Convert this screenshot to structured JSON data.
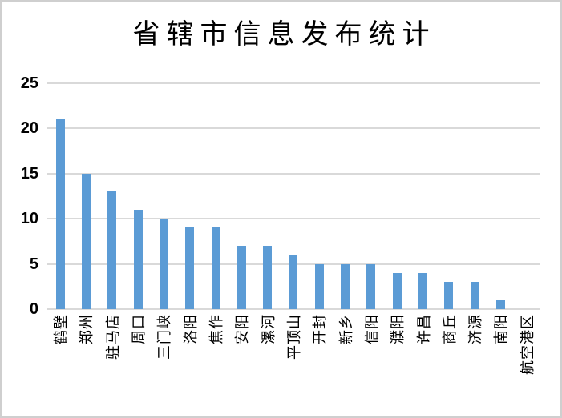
{
  "window": {
    "background_color": "#FFFFFF",
    "border_color": "#CFCFCF"
  },
  "chart_data": {
    "type": "bar",
    "title": "省辖市信息发布统计",
    "categories": [
      "鹤壁",
      "郑州",
      "驻马店",
      "周口",
      "三门峡",
      "洛阳",
      "焦作",
      "安阳",
      "漯河",
      "平顶山",
      "开封",
      "新乡",
      "信阳",
      "濮阳",
      "许昌",
      "商丘",
      "济源",
      "南阳",
      "航空港区"
    ],
    "values": [
      21,
      15,
      13,
      11,
      10,
      9,
      9,
      7,
      7,
      6,
      5,
      5,
      5,
      4,
      4,
      3,
      3,
      1,
      0
    ],
    "xlabel": "",
    "ylabel": "",
    "ylim": [
      0,
      25
    ],
    "yticks": [
      25,
      20,
      15,
      10,
      5,
      0
    ],
    "grid": true,
    "legend_position": "none",
    "x_label_rotation_deg": -90,
    "bar_color": "#5B9BD5",
    "gridline_color": "#D9D9D9",
    "tick_label_color": "#000000",
    "title_color": "#000000"
  }
}
